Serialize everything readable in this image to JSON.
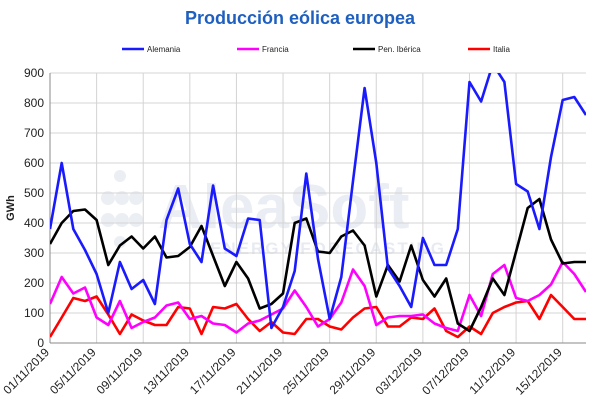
{
  "chart_data": {
    "type": "line",
    "title": "Producción eólica europea",
    "ylabel": "GWh",
    "ylim": [
      0,
      900
    ],
    "yticks": [
      0,
      100,
      200,
      300,
      400,
      500,
      600,
      700,
      800,
      900
    ],
    "x_start": "01/11/2019",
    "x_end": "16/12/2019",
    "xtick_labels": [
      "01/11/2019",
      "05/11/2019",
      "09/11/2019",
      "13/11/2019",
      "17/11/2019",
      "21/11/2019",
      "25/11/2019",
      "29/11/2019",
      "03/12/2019",
      "07/12/2019",
      "11/12/2019",
      "15/12/2019"
    ],
    "grid": true,
    "legend_placement": "top",
    "series": [
      {
        "name": "Alemania",
        "color": "#1a1aff",
        "values": [
          380,
          600,
          380,
          310,
          230,
          100,
          270,
          180,
          210,
          130,
          410,
          515,
          330,
          270,
          525,
          315,
          290,
          415,
          410,
          50,
          120,
          240,
          565,
          280,
          80,
          220,
          540,
          850,
          600,
          250,
          190,
          120,
          350,
          260,
          260,
          380,
          870,
          805,
          930,
          870,
          530,
          505,
          380,
          620,
          810,
          820,
          760
        ]
      },
      {
        "name": "Francia",
        "color": "#ff00ff",
        "values": [
          130,
          220,
          165,
          185,
          85,
          60,
          140,
          50,
          70,
          85,
          125,
          135,
          80,
          90,
          65,
          60,
          35,
          65,
          75,
          95,
          115,
          175,
          120,
          55,
          80,
          135,
          245,
          190,
          60,
          85,
          90,
          90,
          95,
          65,
          50,
          40,
          160,
          90,
          230,
          260,
          150,
          140,
          160,
          195,
          270,
          230,
          170
        ]
      },
      {
        "name": "Pen. Ibérica",
        "color": "#000000",
        "values": [
          330,
          400,
          440,
          445,
          410,
          260,
          325,
          355,
          315,
          355,
          285,
          290,
          320,
          390,
          290,
          190,
          270,
          215,
          115,
          130,
          165,
          400,
          415,
          305,
          300,
          355,
          375,
          325,
          155,
          260,
          205,
          325,
          210,
          155,
          215,
          65,
          40,
          120,
          215,
          160,
          305,
          450,
          480,
          345,
          265,
          270,
          270
        ]
      },
      {
        "name": "Italia",
        "color": "#ff0000",
        "values": [
          20,
          85,
          150,
          140,
          155,
          95,
          30,
          95,
          75,
          60,
          60,
          120,
          115,
          30,
          120,
          115,
          130,
          80,
          40,
          70,
          35,
          30,
          80,
          80,
          55,
          45,
          85,
          115,
          120,
          55,
          55,
          85,
          80,
          115,
          40,
          20,
          55,
          30,
          100,
          120,
          135,
          140,
          80,
          160,
          120,
          80,
          80
        ]
      }
    ],
    "watermark": "AleaSoft ENERGY FORECASTING"
  }
}
